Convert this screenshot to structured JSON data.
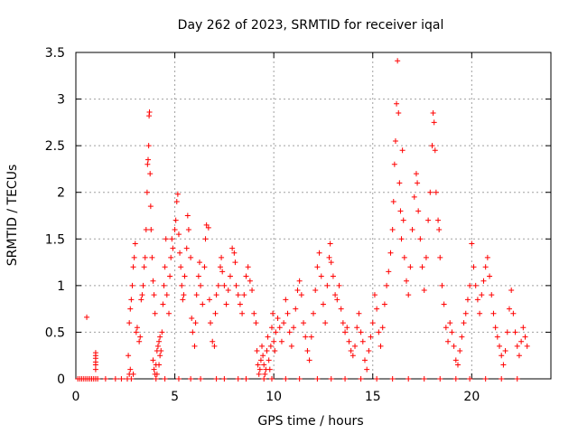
{
  "chart_data": {
    "type": "scatter",
    "title": "Day 262 of 2023, SRMTID for receiver iqal",
    "xlabel": "GPS time / hours",
    "ylabel": "SRMTID / TECUs",
    "xlim": [
      0,
      24
    ],
    "ylim": [
      0,
      3.5
    ],
    "xticks": [
      0,
      5,
      10,
      15,
      20
    ],
    "xtick_labels": [
      "0",
      "5",
      "10",
      "15",
      "20"
    ],
    "yticks": [
      0,
      0.5,
      1,
      1.5,
      2,
      2.5,
      3,
      3.5
    ],
    "ytick_labels": [
      "0",
      "0.5",
      "1",
      "1.5",
      "2",
      "2.5",
      "3",
      "3.5"
    ],
    "grid": true,
    "marker": "+",
    "series": [
      {
        "name": "SRMTID",
        "color": "#ff0000",
        "points": [
          [
            0.1,
            0
          ],
          [
            0.2,
            0
          ],
          [
            0.3,
            0
          ],
          [
            0.4,
            0
          ],
          [
            0.5,
            0
          ],
          [
            0.6,
            0
          ],
          [
            0.7,
            0
          ],
          [
            0.8,
            0
          ],
          [
            0.9,
            0
          ],
          [
            1.0,
            0
          ],
          [
            1.1,
            0
          ],
          [
            0.55,
            0.66
          ],
          [
            1.0,
            0.1
          ],
          [
            1.0,
            0.15
          ],
          [
            1.0,
            0.18
          ],
          [
            1.0,
            0.22
          ],
          [
            1.0,
            0.25
          ],
          [
            1.0,
            0.28
          ],
          [
            1.5,
            0
          ],
          [
            2.0,
            0
          ],
          [
            2.3,
            0
          ],
          [
            2.6,
            0
          ],
          [
            2.7,
            0.05
          ],
          [
            2.75,
            0.1
          ],
          [
            2.8,
            0
          ],
          [
            2.9,
            0.05
          ],
          [
            2.65,
            0.25
          ],
          [
            2.7,
            0.6
          ],
          [
            2.75,
            0.75
          ],
          [
            2.8,
            0.85
          ],
          [
            2.85,
            1.0
          ],
          [
            2.9,
            1.2
          ],
          [
            2.95,
            1.3
          ],
          [
            3.0,
            1.45
          ],
          [
            3.05,
            0.5
          ],
          [
            3.1,
            0.55
          ],
          [
            3.2,
            0.4
          ],
          [
            3.25,
            0.45
          ],
          [
            3.3,
            0.85
          ],
          [
            3.35,
            0.9
          ],
          [
            3.4,
            1.0
          ],
          [
            3.45,
            1.2
          ],
          [
            3.5,
            1.3
          ],
          [
            3.55,
            1.6
          ],
          [
            3.6,
            2.0
          ],
          [
            3.62,
            2.3
          ],
          [
            3.65,
            2.35
          ],
          [
            3.68,
            2.5
          ],
          [
            3.7,
            2.82
          ],
          [
            3.72,
            2.86
          ],
          [
            3.75,
            2.2
          ],
          [
            3.78,
            1.85
          ],
          [
            3.8,
            1.6
          ],
          [
            3.85,
            1.3
          ],
          [
            3.9,
            1.05
          ],
          [
            3.95,
            0.9
          ],
          [
            4.0,
            0.7
          ],
          [
            3.9,
            0.2
          ],
          [
            3.95,
            0.1
          ],
          [
            4.0,
            0.05
          ],
          [
            4.05,
            0.15
          ],
          [
            4.1,
            0.3
          ],
          [
            4.15,
            0.35
          ],
          [
            4.2,
            0.4
          ],
          [
            4.25,
            0.45
          ],
          [
            4.05,
            0.0
          ],
          [
            4.1,
            0.05
          ],
          [
            4.2,
            0.15
          ],
          [
            4.25,
            0.25
          ],
          [
            4.3,
            0.3
          ],
          [
            4.35,
            0.5
          ],
          [
            4.4,
            0.8
          ],
          [
            4.45,
            1.0
          ],
          [
            4.5,
            1.2
          ],
          [
            4.55,
            1.5
          ],
          [
            4.6,
            0.9
          ],
          [
            4.7,
            0.7
          ],
          [
            4.75,
            1.1
          ],
          [
            4.8,
            1.3
          ],
          [
            4.85,
            1.5
          ],
          [
            4.9,
            1.4
          ],
          [
            5.0,
            1.6
          ],
          [
            5.05,
            1.7
          ],
          [
            5.1,
            1.9
          ],
          [
            5.15,
            1.98
          ],
          [
            5.2,
            1.55
          ],
          [
            5.25,
            1.35
          ],
          [
            5.3,
            1.2
          ],
          [
            5.35,
            1.0
          ],
          [
            5.4,
            0.85
          ],
          [
            5.45,
            0.9
          ],
          [
            5.5,
            1.1
          ],
          [
            5.6,
            1.4
          ],
          [
            5.65,
            1.75
          ],
          [
            5.7,
            1.6
          ],
          [
            5.8,
            1.3
          ],
          [
            5.85,
            0.65
          ],
          [
            5.9,
            0.5
          ],
          [
            6.0,
            0.35
          ],
          [
            6.05,
            0.6
          ],
          [
            6.1,
            0.9
          ],
          [
            6.2,
            1.1
          ],
          [
            6.25,
            1.25
          ],
          [
            6.3,
            1.0
          ],
          [
            6.4,
            0.8
          ],
          [
            6.5,
            1.2
          ],
          [
            6.55,
            1.5
          ],
          [
            6.6,
            1.65
          ],
          [
            6.7,
            1.62
          ],
          [
            6.75,
            0.85
          ],
          [
            6.8,
            0.6
          ],
          [
            6.9,
            0.4
          ],
          [
            7.0,
            0.35
          ],
          [
            7.05,
            0.7
          ],
          [
            7.1,
            0.9
          ],
          [
            7.2,
            1.0
          ],
          [
            7.3,
            1.2
          ],
          [
            7.35,
            1.3
          ],
          [
            7.4,
            1.15
          ],
          [
            7.5,
            1.0
          ],
          [
            7.6,
            0.8
          ],
          [
            7.7,
            0.95
          ],
          [
            7.8,
            1.1
          ],
          [
            7.9,
            1.4
          ],
          [
            8.0,
            1.35
          ],
          [
            8.05,
            1.25
          ],
          [
            8.1,
            1.0
          ],
          [
            8.2,
            0.9
          ],
          [
            8.3,
            0.8
          ],
          [
            8.4,
            0.7
          ],
          [
            8.5,
            0.9
          ],
          [
            8.6,
            1.1
          ],
          [
            8.7,
            1.2
          ],
          [
            8.8,
            1.05
          ],
          [
            8.9,
            0.95
          ],
          [
            9.0,
            0.7
          ],
          [
            9.1,
            0.6
          ],
          [
            9.15,
            0.3
          ],
          [
            9.2,
            0.15
          ],
          [
            9.25,
            0.05
          ],
          [
            9.3,
            0.1
          ],
          [
            9.35,
            0.2
          ],
          [
            9.4,
            0.35
          ],
          [
            9.45,
            0.25
          ],
          [
            9.5,
            0.15
          ],
          [
            9.55,
            0.05
          ],
          [
            9.6,
            0.1
          ],
          [
            9.65,
            0.3
          ],
          [
            9.7,
            0.45
          ],
          [
            9.75,
            0.2
          ],
          [
            9.8,
            0.1
          ],
          [
            9.85,
            0.35
          ],
          [
            9.9,
            0.55
          ],
          [
            9.95,
            0.7
          ],
          [
            10.0,
            0.4
          ],
          [
            10.05,
            0.3
          ],
          [
            10.1,
            0.5
          ],
          [
            10.2,
            0.65
          ],
          [
            10.3,
            0.55
          ],
          [
            10.4,
            0.4
          ],
          [
            10.5,
            0.6
          ],
          [
            10.6,
            0.85
          ],
          [
            10.7,
            0.7
          ],
          [
            10.8,
            0.5
          ],
          [
            10.9,
            0.35
          ],
          [
            11.0,
            0.55
          ],
          [
            11.1,
            0.75
          ],
          [
            11.2,
            0.95
          ],
          [
            11.3,
            1.05
          ],
          [
            11.4,
            0.9
          ],
          [
            11.5,
            0.6
          ],
          [
            11.6,
            0.45
          ],
          [
            11.7,
            0.3
          ],
          [
            11.8,
            0.2
          ],
          [
            11.9,
            0.45
          ],
          [
            12.0,
            0.7
          ],
          [
            12.1,
            0.95
          ],
          [
            12.2,
            1.2
          ],
          [
            12.3,
            1.35
          ],
          [
            12.4,
            1.1
          ],
          [
            12.5,
            0.8
          ],
          [
            12.6,
            0.6
          ],
          [
            12.7,
            1.0
          ],
          [
            12.8,
            1.3
          ],
          [
            12.85,
            1.45
          ],
          [
            12.9,
            1.25
          ],
          [
            13.0,
            1.1
          ],
          [
            13.1,
            0.9
          ],
          [
            13.2,
            0.85
          ],
          [
            13.3,
            1.0
          ],
          [
            13.4,
            0.75
          ],
          [
            13.5,
            0.6
          ],
          [
            13.6,
            0.5
          ],
          [
            13.7,
            0.55
          ],
          [
            13.8,
            0.4
          ],
          [
            13.9,
            0.3
          ],
          [
            14.0,
            0.25
          ],
          [
            14.1,
            0.35
          ],
          [
            14.2,
            0.55
          ],
          [
            14.3,
            0.7
          ],
          [
            14.4,
            0.5
          ],
          [
            14.5,
            0.4
          ],
          [
            14.6,
            0.2
          ],
          [
            14.7,
            0.1
          ],
          [
            14.8,
            0.3
          ],
          [
            14.9,
            0.45
          ],
          [
            15.0,
            0.6
          ],
          [
            15.1,
            0.9
          ],
          [
            15.2,
            0.75
          ],
          [
            15.3,
            0.5
          ],
          [
            15.4,
            0.35
          ],
          [
            15.5,
            0.55
          ],
          [
            15.6,
            0.8
          ],
          [
            15.7,
            1.0
          ],
          [
            15.8,
            1.15
          ],
          [
            15.9,
            1.35
          ],
          [
            16.0,
            1.6
          ],
          [
            16.05,
            1.9
          ],
          [
            16.1,
            2.3
          ],
          [
            16.15,
            2.55
          ],
          [
            16.2,
            2.95
          ],
          [
            16.25,
            3.41
          ],
          [
            16.3,
            2.85
          ],
          [
            16.35,
            2.1
          ],
          [
            16.4,
            1.8
          ],
          [
            16.45,
            1.5
          ],
          [
            16.5,
            2.45
          ],
          [
            16.55,
            1.7
          ],
          [
            16.6,
            1.3
          ],
          [
            16.7,
            1.05
          ],
          [
            16.8,
            0.9
          ],
          [
            16.9,
            1.2
          ],
          [
            17.0,
            1.6
          ],
          [
            17.1,
            1.95
          ],
          [
            17.2,
            2.2
          ],
          [
            17.25,
            2.1
          ],
          [
            17.3,
            1.8
          ],
          [
            17.4,
            1.5
          ],
          [
            17.5,
            1.2
          ],
          [
            17.6,
            0.95
          ],
          [
            17.7,
            1.3
          ],
          [
            17.8,
            1.7
          ],
          [
            17.9,
            2.0
          ],
          [
            18.0,
            2.5
          ],
          [
            18.05,
            2.85
          ],
          [
            18.1,
            2.75
          ],
          [
            18.15,
            2.45
          ],
          [
            18.2,
            2.0
          ],
          [
            18.3,
            1.7
          ],
          [
            18.35,
            1.6
          ],
          [
            18.4,
            1.3
          ],
          [
            18.5,
            1.0
          ],
          [
            18.6,
            0.8
          ],
          [
            18.7,
            0.55
          ],
          [
            18.8,
            0.4
          ],
          [
            18.9,
            0.6
          ],
          [
            19.0,
            0.5
          ],
          [
            19.1,
            0.35
          ],
          [
            19.2,
            0.2
          ],
          [
            19.3,
            0.15
          ],
          [
            19.4,
            0.3
          ],
          [
            19.5,
            0.45
          ],
          [
            19.6,
            0.6
          ],
          [
            19.7,
            0.7
          ],
          [
            19.8,
            0.85
          ],
          [
            19.9,
            1.0
          ],
          [
            20.0,
            1.45
          ],
          [
            20.1,
            1.2
          ],
          [
            20.2,
            1.0
          ],
          [
            20.3,
            0.85
          ],
          [
            20.4,
            0.7
          ],
          [
            20.5,
            0.9
          ],
          [
            20.6,
            1.05
          ],
          [
            20.7,
            1.2
          ],
          [
            20.8,
            1.3
          ],
          [
            20.9,
            1.1
          ],
          [
            21.0,
            0.9
          ],
          [
            21.1,
            0.7
          ],
          [
            21.2,
            0.55
          ],
          [
            21.3,
            0.45
          ],
          [
            21.4,
            0.35
          ],
          [
            21.5,
            0.25
          ],
          [
            21.6,
            0.15
          ],
          [
            21.7,
            0.3
          ],
          [
            21.8,
            0.5
          ],
          [
            21.9,
            0.75
          ],
          [
            22.0,
            0.95
          ],
          [
            22.1,
            0.7
          ],
          [
            22.2,
            0.5
          ],
          [
            22.3,
            0.35
          ],
          [
            22.4,
            0.25
          ],
          [
            22.5,
            0.4
          ],
          [
            22.6,
            0.55
          ],
          [
            22.7,
            0.45
          ],
          [
            22.8,
            0.35
          ],
          [
            4.5,
            0
          ],
          [
            5.2,
            0
          ],
          [
            5.8,
            0
          ],
          [
            6.3,
            0
          ],
          [
            7.1,
            0
          ],
          [
            7.5,
            0
          ],
          [
            8.2,
            0
          ],
          [
            8.6,
            0
          ],
          [
            9.5,
            0
          ],
          [
            9.9,
            0
          ],
          [
            10.6,
            0
          ],
          [
            11.3,
            0
          ],
          [
            12.2,
            0
          ],
          [
            12.9,
            0
          ],
          [
            13.6,
            0
          ],
          [
            14.4,
            0
          ],
          [
            15.2,
            0
          ],
          [
            16.0,
            0
          ],
          [
            16.8,
            0
          ],
          [
            17.6,
            0
          ],
          [
            18.4,
            0
          ],
          [
            19.2,
            0
          ],
          [
            19.9,
            0
          ],
          [
            20.7,
            0
          ],
          [
            21.5,
            0
          ],
          [
            22.3,
            0
          ]
        ]
      }
    ]
  }
}
